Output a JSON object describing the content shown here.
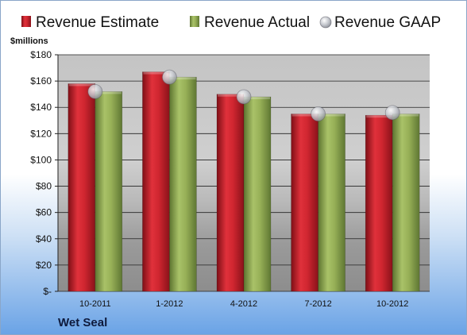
{
  "chart_data": {
    "type": "bar",
    "categories": [
      "10-2011",
      "1-2012",
      "4-2012",
      "7-2012",
      "10-2012"
    ],
    "series": [
      {
        "name": "Revenue Estimate",
        "kind": "bar",
        "color": "#c8202a",
        "values": [
          158,
          167,
          150,
          135,
          134
        ]
      },
      {
        "name": "Revenue Actual",
        "kind": "bar",
        "color": "#8fa84e",
        "values": [
          152,
          163,
          148,
          135,
          135
        ]
      },
      {
        "name": "Revenue GAAP",
        "kind": "marker",
        "color": "#c9ccd3",
        "values": [
          152,
          163,
          148,
          135,
          136
        ]
      }
    ],
    "ylabel": "$millions",
    "ylim": [
      0,
      180
    ],
    "yticks": [
      0,
      20,
      40,
      60,
      80,
      100,
      120,
      140,
      160,
      180
    ],
    "ytick_labels": [
      "$-",
      "$20",
      "$40",
      "$60",
      "$80",
      "$100",
      "$120",
      "$140",
      "$160",
      "$180"
    ],
    "grid": true,
    "legend_position": "top"
  },
  "footer": {
    "company": "Wet Seal"
  }
}
